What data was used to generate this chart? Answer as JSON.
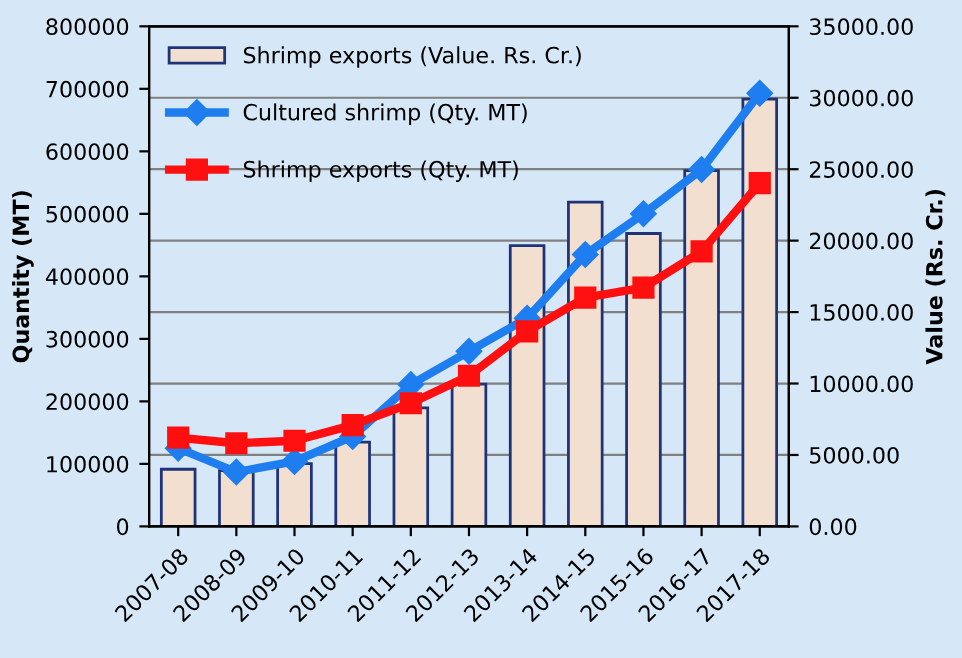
{
  "chart_data": {
    "type": "line",
    "categories": [
      "2007-08",
      "2008-09",
      "2009-10",
      "2010-11",
      "2011-12",
      "2012-13",
      "2013-14",
      "2014-15",
      "2015-16",
      "2016-17",
      "2017-18"
    ],
    "series": [
      {
        "name": "Shrimp exports (Value. Rs. Cr.)",
        "type": "bar",
        "axis": "y2",
        "color": "#f2dfd0",
        "values": [
          4000,
          3900,
          4400,
          5900,
          8300,
          9950,
          19650,
          22700,
          20500,
          24900,
          29900
        ]
      },
      {
        "name": "Cultured shrimp (Qty. MT)",
        "marker": "diamond",
        "color": "#1e7ef0",
        "values": [
          125000,
          87000,
          104000,
          144000,
          227000,
          280000,
          333000,
          435000,
          500000,
          571000,
          693000
        ]
      },
      {
        "name": "Shrimp exports (Qty. MT)",
        "marker": "square",
        "color": "#ff1010",
        "values": [
          142000,
          133000,
          137000,
          162000,
          197000,
          241000,
          312000,
          366000,
          382000,
          440000,
          549000
        ]
      }
    ],
    "ylabel": "Quantity (MT)",
    "y2label": "Value (Rs. Cr.)",
    "ylim": [
      0,
      800000
    ],
    "yticks": [
      0,
      100000,
      200000,
      300000,
      400000,
      500000,
      600000,
      700000,
      800000
    ],
    "y2lim": [
      0,
      35000
    ],
    "y2ticks": [
      {
        "value": 0,
        "label": "0.00"
      },
      {
        "value": 5000,
        "label": "5000.00"
      },
      {
        "value": 10000,
        "label": "10000.00"
      },
      {
        "value": 15000,
        "label": "15000.00"
      },
      {
        "value": 20000,
        "label": "20000.00"
      },
      {
        "value": 25000,
        "label": "25000.00"
      },
      {
        "value": 30000,
        "label": "30000.00"
      },
      {
        "value": 35000,
        "label": "35000.00"
      }
    ],
    "grid": "y",
    "legend": "top left",
    "line_style": "solid"
  }
}
